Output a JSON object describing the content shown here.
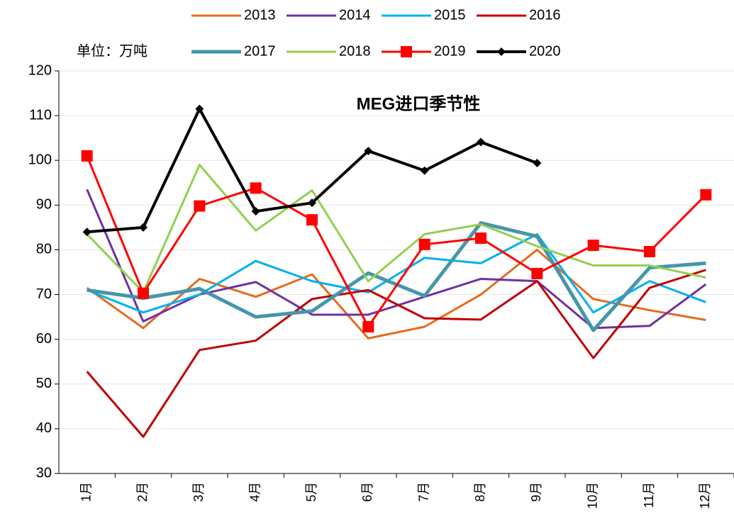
{
  "chart_data": {
    "type": "line",
    "title": "MEG进口季节性",
    "unit_label": "单位：万吨",
    "categories": [
      "1月",
      "2月",
      "3月",
      "4月",
      "5月",
      "6月",
      "7月",
      "8月",
      "9月",
      "10月",
      "11月",
      "12月"
    ],
    "ylim": [
      30,
      120
    ],
    "yticks": [
      30,
      40,
      50,
      60,
      70,
      80,
      90,
      100,
      110,
      120
    ],
    "grid": true,
    "series": [
      {
        "name": "2013",
        "color": "#e46c1c",
        "line_width": 3,
        "values": [
          71.5,
          62.5,
          73.5,
          69.5,
          74.5,
          60.2,
          62.8,
          70,
          80,
          69,
          66.5,
          64.3
        ]
      },
      {
        "name": "2014",
        "color": "#7030a0",
        "line_width": 3,
        "values": [
          93.5,
          64,
          70,
          72.8,
          65.5,
          65.5,
          69.5,
          73.5,
          73,
          62.5,
          63,
          72.3
        ]
      },
      {
        "name": "2015",
        "color": "#00b0f0",
        "line_width": 3,
        "values": [
          71,
          66,
          70,
          77.5,
          73,
          70.5,
          78.2,
          77,
          83.5,
          66,
          73,
          68.3
        ]
      },
      {
        "name": "2016",
        "color": "#c00000",
        "line_width": 3,
        "values": [
          52.8,
          38.2,
          57.6,
          59.7,
          69,
          71,
          64.7,
          64.4,
          73,
          55.8,
          71.5,
          75.5
        ]
      },
      {
        "name": "2017",
        "color": "#4596aa",
        "line_width": 5,
        "values": [
          71,
          69.2,
          71.3,
          65,
          66.3,
          74.8,
          69.7,
          86,
          83,
          62,
          76,
          77
        ]
      },
      {
        "name": "2018",
        "color": "#92d050",
        "line_width": 3,
        "values": [
          83.5,
          70.5,
          99,
          84.3,
          93.3,
          73,
          83.5,
          85.7,
          80.8,
          76.5,
          76.5,
          73.8
        ]
      },
      {
        "name": "2019",
        "color": "#ff0000",
        "line_width": 3,
        "marker": "square",
        "values": [
          101,
          70.3,
          89.8,
          93.8,
          86.7,
          62.8,
          81.2,
          82.6,
          74.7,
          81,
          79.6,
          92.3
        ]
      },
      {
        "name": "2020",
        "color": "#000000",
        "line_width": 4,
        "marker": "diamond",
        "values": [
          84,
          85,
          111.5,
          88.6,
          90.5,
          102.1,
          97.7,
          104.1,
          99.4,
          null,
          null,
          null
        ]
      }
    ]
  }
}
